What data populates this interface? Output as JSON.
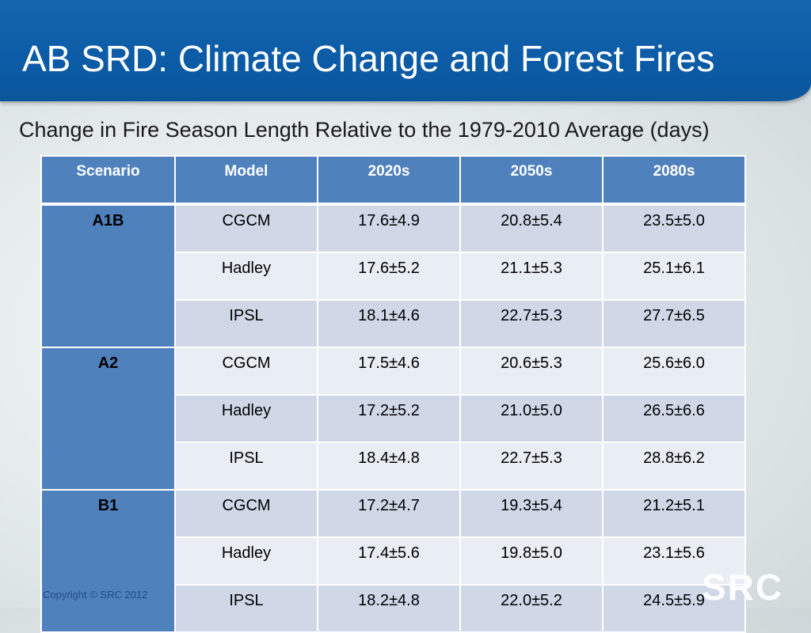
{
  "slide": {
    "title": "AB SRD: Climate Change and Forest Fires",
    "subtitle": "Change in Fire Season Length Relative to the 1979-2010 Average (days)",
    "footer": "Copyright © SRC 2012",
    "logo_text": "SRC"
  },
  "table": {
    "headers": [
      "Scenario",
      "Model",
      "2020s",
      "2050s",
      "2080s"
    ],
    "groups": [
      {
        "scenario": "A1B",
        "rows": [
          {
            "model": "CGCM",
            "y2020s": "17.6±4.9",
            "y2050s": "20.8±5.4",
            "y2080s": "23.5±5.0"
          },
          {
            "model": "Hadley",
            "y2020s": "17.6±5.2",
            "y2050s": "21.1±5.3",
            "y2080s": "25.1±6.1"
          },
          {
            "model": "IPSL",
            "y2020s": "18.1±4.6",
            "y2050s": "22.7±5.3",
            "y2080s": "27.7±6.5"
          }
        ]
      },
      {
        "scenario": "A2",
        "rows": [
          {
            "model": "CGCM",
            "y2020s": "17.5±4.6",
            "y2050s": "20.6±5.3",
            "y2080s": "25.6±6.0"
          },
          {
            "model": "Hadley",
            "y2020s": "17.2±5.2",
            "y2050s": "21.0±5.0",
            "y2080s": "26.5±6.6"
          },
          {
            "model": "IPSL",
            "y2020s": "18.4±4.8",
            "y2050s": "22.7±5.3",
            "y2080s": "28.8±6.2"
          }
        ]
      },
      {
        "scenario": "B1",
        "rows": [
          {
            "model": "CGCM",
            "y2020s": "17.2±4.7",
            "y2050s": "19.3±5.4",
            "y2080s": "21.2±5.1"
          },
          {
            "model": "Hadley",
            "y2020s": "17.4±5.6",
            "y2050s": "19.8±5.0",
            "y2080s": "23.1±5.6"
          },
          {
            "model": "IPSL",
            "y2020s": "18.2±4.8",
            "y2050s": "22.0±5.2",
            "y2080s": "24.5±5.9"
          }
        ]
      }
    ]
  },
  "colors": {
    "title_bar": "#0b5ba6",
    "header_fill": "#4f81bd",
    "band_dark": "#d0d8e8",
    "band_light": "#e9edf4"
  }
}
